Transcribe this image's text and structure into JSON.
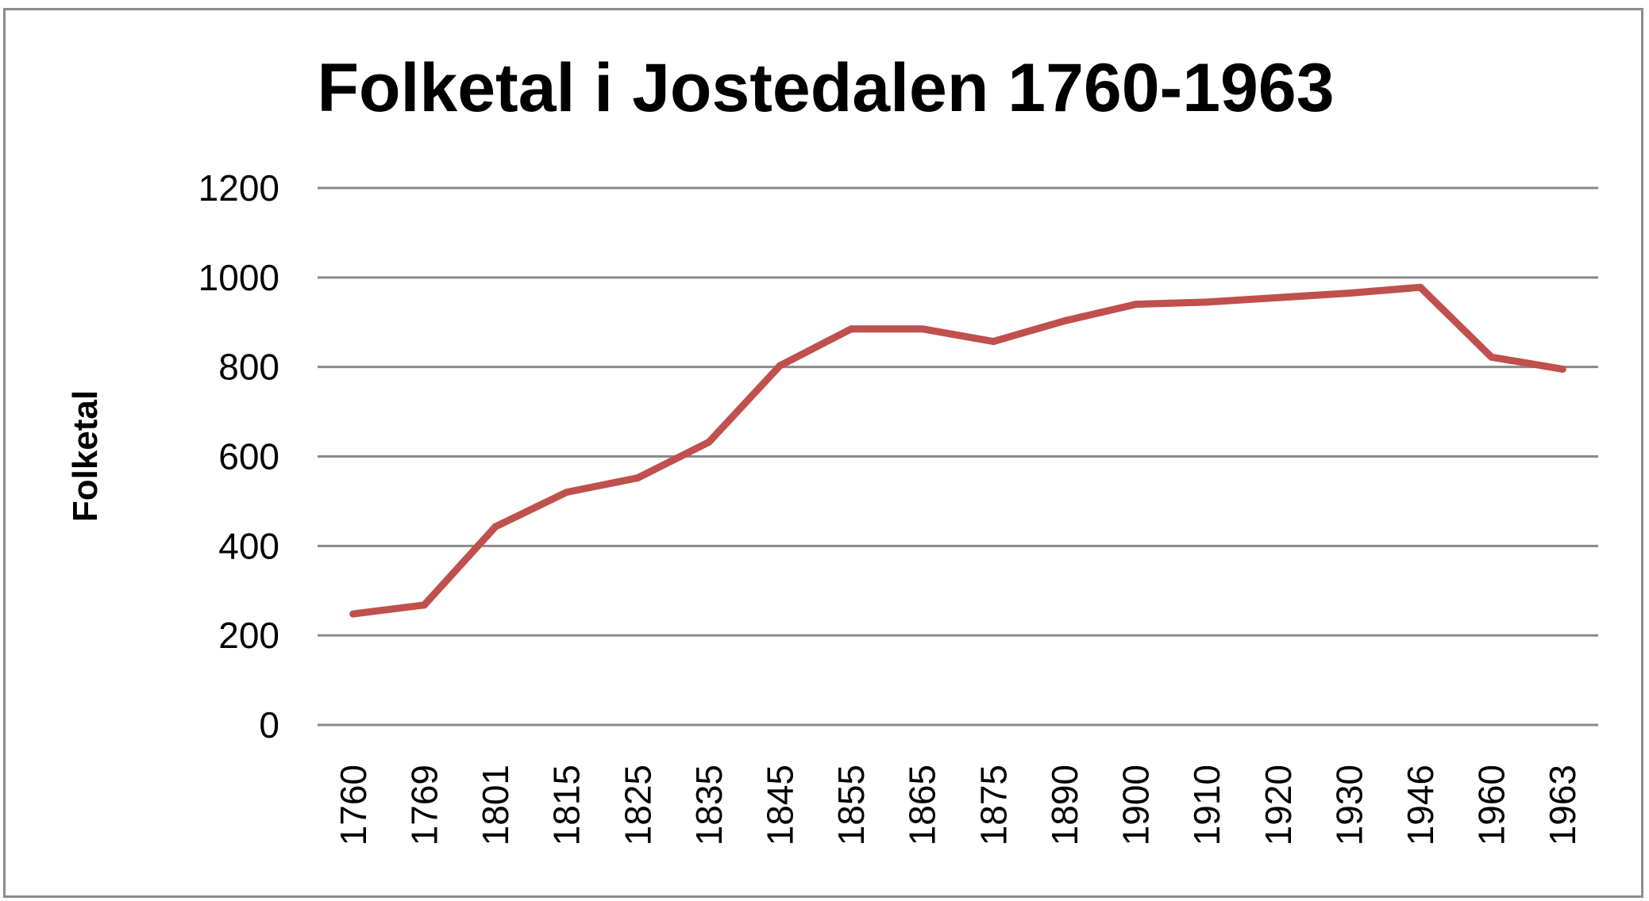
{
  "chart_data": {
    "type": "line",
    "title": "Folketal i Jostedalen 1760-1963",
    "xlabel": "",
    "ylabel": "Folketal",
    "categories": [
      "1760",
      "1769",
      "1801",
      "1815",
      "1825",
      "1835",
      "1845",
      "1855",
      "1865",
      "1875",
      "1890",
      "1900",
      "1910",
      "1920",
      "1930",
      "1946",
      "1960",
      "1963"
    ],
    "series": [
      {
        "values": [
          248,
          268,
          443,
          520,
          552,
          632,
          803,
          885,
          885,
          857,
          903,
          940,
          945,
          955,
          965,
          978,
          822,
          795
        ],
        "color": "#c0504d"
      }
    ],
    "ylim": [
      0,
      1200
    ],
    "yticks": [
      0,
      200,
      400,
      600,
      800,
      1000,
      1200
    ],
    "grid": true,
    "legend": "none"
  }
}
